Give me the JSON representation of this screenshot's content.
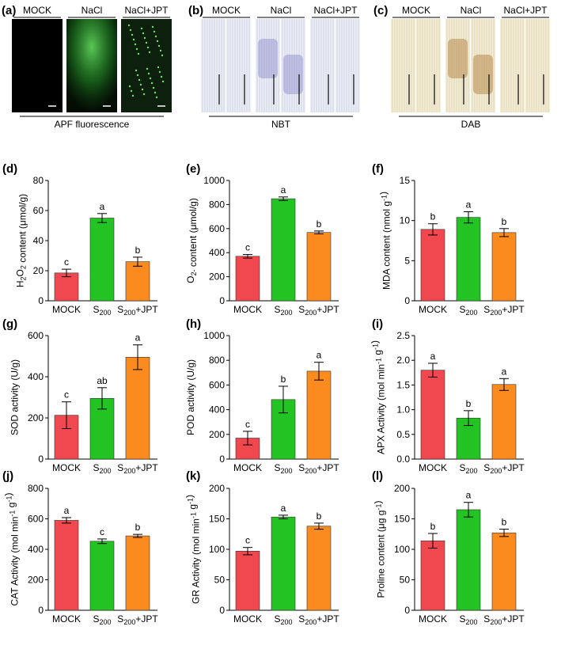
{
  "top_panels": [
    {
      "label": "(a)",
      "headers": [
        "MOCK",
        "NaCl",
        "NaCl+JPT"
      ],
      "caption": "APF fluorescence",
      "style": "fluorescence"
    },
    {
      "label": "(b)",
      "headers": [
        "MOCK",
        "NaCl",
        "NaCl+JPT"
      ],
      "caption": "NBT",
      "style": "nbt"
    },
    {
      "label": "(c)",
      "headers": [
        "MOCK",
        "NaCl",
        "NaCl+JPT"
      ],
      "caption": "DAB",
      "style": "dab"
    }
  ],
  "colors": {
    "MOCK": "#f0484e",
    "S200": "#22c322",
    "S200+JPT": "#fb8a1f"
  },
  "chart_data": [
    {
      "label": "(d)",
      "type": "bar",
      "categories": [
        "MOCK",
        "S200",
        "S200+JPT"
      ],
      "values": [
        18.5,
        55,
        26
      ],
      "errors": [
        2.5,
        3,
        3
      ],
      "sig": [
        "c",
        "a",
        "b"
      ],
      "ylabel": "H2O2 content (μmol/g)",
      "ylim": [
        0,
        80
      ],
      "yticks": [
        0,
        20,
        40,
        60,
        80
      ]
    },
    {
      "label": "(e)",
      "type": "bar",
      "categories": [
        "MOCK",
        "S200",
        "S200+JPT"
      ],
      "values": [
        370,
        848,
        568
      ],
      "errors": [
        15,
        15,
        12
      ],
      "sig": [
        "c",
        "a",
        "b"
      ],
      "ylabel": "O2- content (μmol/g)",
      "ylim": [
        0,
        1000
      ],
      "yticks": [
        0,
        200,
        400,
        600,
        800,
        1000
      ]
    },
    {
      "label": "(f)",
      "type": "bar",
      "categories": [
        "MOCK",
        "S200",
        "S200+JPT"
      ],
      "values": [
        8.9,
        10.4,
        8.5
      ],
      "errors": [
        0.7,
        0.7,
        0.5
      ],
      "sig": [
        "b",
        "a",
        "b"
      ],
      "ylabel": "MDA content (nmol g-1)",
      "ylim": [
        0,
        15
      ],
      "yticks": [
        0,
        5,
        10,
        15
      ]
    },
    {
      "label": "(g)",
      "type": "bar",
      "categories": [
        "MOCK",
        "S200",
        "S200+JPT"
      ],
      "values": [
        213,
        295,
        495
      ],
      "errors": [
        65,
        52,
        60
      ],
      "sig": [
        "c",
        "ab",
        "a"
      ],
      "ylabel": "SOD activity (U/g)",
      "ylim": [
        0,
        600
      ],
      "yticks": [
        0,
        200,
        400,
        600
      ]
    },
    {
      "label": "(h)",
      "type": "bar",
      "categories": [
        "MOCK",
        "S200",
        "S200+JPT"
      ],
      "values": [
        170,
        482,
        712
      ],
      "errors": [
        55,
        108,
        72
      ],
      "sig": [
        "c",
        "b",
        "a"
      ],
      "ylabel": "POD activity (U/g)",
      "ylim": [
        0,
        1000
      ],
      "yticks": [
        0,
        200,
        400,
        600,
        800,
        1000
      ]
    },
    {
      "label": "(i)",
      "type": "bar",
      "categories": [
        "MOCK",
        "S200",
        "S200+JPT"
      ],
      "values": [
        1.8,
        0.83,
        1.51
      ],
      "errors": [
        0.14,
        0.15,
        0.12
      ],
      "sig": [
        "a",
        "b",
        "a"
      ],
      "ylabel": "APX Activity (mol min-1 g-1)",
      "ylim": [
        0,
        2.5
      ],
      "yticks": [
        0.0,
        0.5,
        1.0,
        1.5,
        2.0,
        2.5
      ],
      "tick_decimals": 1
    },
    {
      "label": "(j)",
      "type": "bar",
      "categories": [
        "MOCK",
        "S200",
        "S200+JPT"
      ],
      "values": [
        590,
        453,
        488
      ],
      "errors": [
        18,
        15,
        10
      ],
      "sig": [
        "a",
        "c",
        "b"
      ],
      "ylabel": "CAT Activity (mol min-1 g-1)",
      "ylim": [
        0,
        800
      ],
      "yticks": [
        0,
        200,
        400,
        600,
        800
      ]
    },
    {
      "label": "(k)",
      "type": "bar",
      "categories": [
        "MOCK",
        "S200",
        "S200+JPT"
      ],
      "values": [
        97,
        153,
        138
      ],
      "errors": [
        6,
        3,
        5
      ],
      "sig": [
        "c",
        "a",
        "b"
      ],
      "ylabel": "GR Activity (mol min-1 g-1)",
      "ylim": [
        0,
        200
      ],
      "yticks": [
        0,
        50,
        100,
        150,
        200
      ]
    },
    {
      "label": "(l)",
      "type": "bar",
      "categories": [
        "MOCK",
        "S200",
        "S200+JPT"
      ],
      "values": [
        114,
        165,
        127
      ],
      "errors": [
        12,
        12,
        6
      ],
      "sig": [
        "b",
        "a",
        "b"
      ],
      "ylabel": "Proline content (μg g-1)",
      "ylim": [
        0,
        200
      ],
      "yticks": [
        0,
        50,
        100,
        150,
        200
      ]
    }
  ]
}
